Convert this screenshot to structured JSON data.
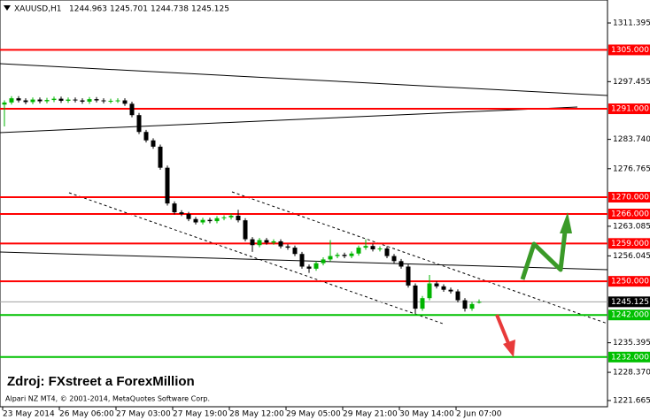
{
  "chart_data": {
    "type": "candlestick",
    "symbol": "XAUUSD,H1",
    "watermark": "Zdroj: FXstreet a ForexMillion",
    "footer": "Alpari NZ MT4, © 2001-2014, MetaQuotes Software Corp.",
    "categories": [
      "23 May 2014",
      null,
      null,
      null,
      null,
      null,
      null,
      null,
      "26 May 06:00",
      null,
      null,
      null,
      null,
      null,
      null,
      null,
      "27 May 03:00",
      null,
      null,
      null,
      null,
      null,
      null,
      null,
      "27 May 19:00",
      null,
      null,
      null,
      null,
      null,
      null,
      null,
      "28 May 12:00",
      null,
      null,
      null,
      null,
      null,
      null,
      null,
      "29 May 05:00",
      null,
      null,
      null,
      null,
      null,
      null,
      null,
      "29 May 21:00",
      null,
      null,
      null,
      null,
      null,
      null,
      null,
      "30 May 14:00",
      null,
      null,
      null,
      null,
      null,
      null,
      null,
      "2 Jun 07:00",
      null,
      null,
      null
    ],
    "open": [
      1292.0,
      1292.5,
      1293.5,
      1293.0,
      1292.6,
      1293.2,
      1292.8,
      1293.1,
      1293.4,
      1292.9,
      1293.2,
      1293.0,
      1292.7,
      1293.3,
      1293.0,
      1292.8,
      1292.9,
      1293.0,
      1292.2,
      1289.5,
      1285.5,
      1283.5,
      1282.0,
      1277.0,
      1268.5,
      1266.4,
      1266.0,
      1264.8,
      1264.0,
      1264.6,
      1264.3,
      1265.0,
      1265.2,
      1265.6,
      1264.5,
      1260.0,
      1258.6,
      1259.8,
      1259.2,
      1259.5,
      1258.3,
      1258.0,
      1256.5,
      1253.5,
      1253.0,
      1254.3,
      1255.2,
      1256.0,
      1256.3,
      1256.0,
      1256.6,
      1258.0,
      1258.4,
      1257.6,
      1257.8,
      1256.0,
      1254.8,
      1253.5,
      1249.0,
      1243.5,
      1246.0,
      1249.5,
      1248.8,
      1248.0,
      1247.6,
      1245.5,
      1243.5,
      1244.963
    ],
    "high": [
      1293.0,
      1294.0,
      1294.0,
      1293.5,
      1293.7,
      1293.7,
      1293.6,
      1293.9,
      1293.9,
      1293.7,
      1293.7,
      1293.5,
      1293.8,
      1293.8,
      1293.5,
      1293.4,
      1293.5,
      1293.5,
      1292.7,
      1290.0,
      1286.0,
      1284.0,
      1282.5,
      1277.5,
      1269.0,
      1266.9,
      1266.5,
      1265.3,
      1265.1,
      1265.1,
      1265.5,
      1265.7,
      1266.1,
      1267.0,
      1265.0,
      1260.5,
      1260.3,
      1260.3,
      1260.0,
      1260.0,
      1258.8,
      1258.5,
      1257.0,
      1254.0,
      1254.8,
      1255.7,
      1259.8,
      1256.8,
      1256.8,
      1257.1,
      1258.5,
      1260.0,
      1258.9,
      1258.3,
      1258.3,
      1256.5,
      1255.3,
      1254.0,
      1249.5,
      1246.5,
      1251.5,
      1250.0,
      1249.3,
      1248.5,
      1248.1,
      1246.0,
      1245.1,
      1245.701
    ],
    "low": [
      1286.8,
      1292.0,
      1292.5,
      1292.1,
      1292.1,
      1292.3,
      1292.3,
      1292.6,
      1292.4,
      1292.4,
      1292.5,
      1292.2,
      1292.2,
      1292.5,
      1292.3,
      1292.3,
      1292.4,
      1291.7,
      1289.0,
      1285.0,
      1283.0,
      1281.5,
      1276.5,
      1268.0,
      1265.9,
      1265.5,
      1264.3,
      1263.5,
      1263.5,
      1263.8,
      1263.8,
      1264.5,
      1264.7,
      1264.0,
      1259.5,
      1257.0,
      1258.1,
      1258.7,
      1258.7,
      1257.8,
      1257.5,
      1256.0,
      1253.0,
      1252.0,
      1252.5,
      1253.8,
      1254.7,
      1255.5,
      1255.5,
      1255.5,
      1256.1,
      1257.5,
      1257.1,
      1257.1,
      1255.5,
      1254.3,
      1253.0,
      1248.5,
      1242.3,
      1243.0,
      1245.5,
      1248.3,
      1247.5,
      1247.1,
      1245.0,
      1242.8,
      1243.0,
      1244.738
    ],
    "close": [
      1292.5,
      1293.5,
      1293.0,
      1292.6,
      1293.2,
      1292.8,
      1293.1,
      1293.4,
      1292.9,
      1293.2,
      1293.0,
      1292.7,
      1293.3,
      1293.0,
      1292.8,
      1292.9,
      1293.0,
      1292.2,
      1289.5,
      1285.5,
      1283.5,
      1282.0,
      1277.0,
      1268.5,
      1266.4,
      1266.0,
      1264.8,
      1264.0,
      1264.6,
      1264.3,
      1265.0,
      1265.2,
      1265.6,
      1264.5,
      1260.0,
      1258.6,
      1259.8,
      1259.2,
      1259.5,
      1258.3,
      1258.0,
      1256.5,
      1253.5,
      1253.0,
      1254.3,
      1255.2,
      1256.0,
      1256.3,
      1256.0,
      1256.6,
      1258.0,
      1258.4,
      1257.6,
      1257.8,
      1256.0,
      1254.8,
      1253.5,
      1249.0,
      1243.5,
      1246.0,
      1249.5,
      1248.8,
      1248.0,
      1247.6,
      1245.5,
      1243.5,
      1244.6,
      1245.125
    ],
    "up_color": "#00b400",
    "down_color": "#000000",
    "ylim": [
      1220.19,
      1316.86
    ],
    "yticks": [
      1311.395,
      1297.455,
      {
        "value": 1283.74,
        "label": "1283.740"
      },
      1276.765,
      1263.085,
      1256.045,
      1235.395,
      {
        "value": 1228.37,
        "label": "1228.370"
      },
      1221.665
    ],
    "levels": {
      "values": [
        1305,
        1291,
        1270,
        1266,
        1259,
        1250,
        1242,
        1232
      ],
      "value_labels": [
        "1305.000",
        "1291.000",
        "1270.000",
        "1266.000",
        "1259.000",
        "1250.000",
        "1242.000",
        "1232.000"
      ],
      "colors": [
        "#ff0000",
        "#ff0000",
        "#ff0000",
        "#ff0000",
        "#ff0000",
        "#ff0000",
        "#00c000",
        "#00c000"
      ]
    },
    "grid": false
  }
}
